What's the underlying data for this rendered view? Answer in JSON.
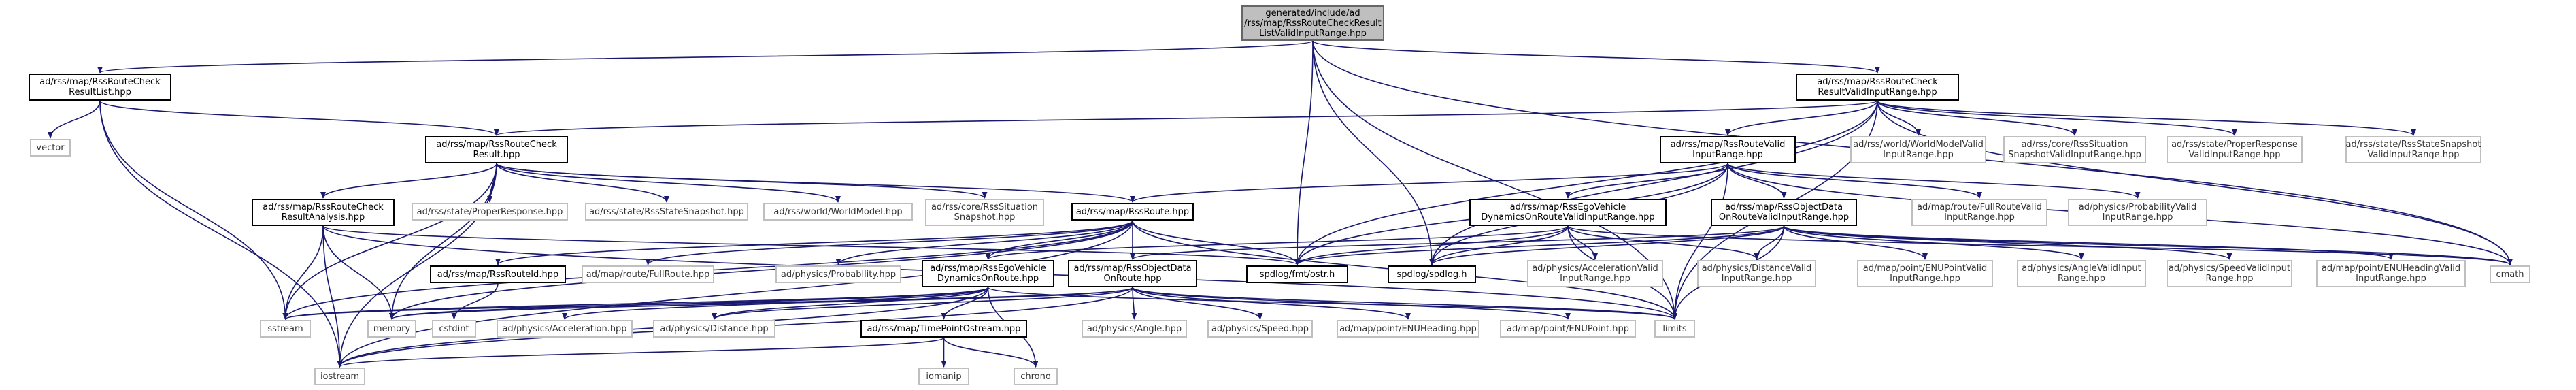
{
  "colors": {
    "edge": "#191970",
    "edge_alt": "#63b8ff",
    "root_fill": "#bfbfbf",
    "gray_border": "#bfbfbf"
  },
  "nodes": {
    "root": "generated/include/ad\n/rss/map/RssRouteCheckResult\nListValidInputRange.hpp",
    "n_resultlist": "ad/rss/map/RssRouteCheck\nResultList.hpp",
    "n_resultvalid": "ad/rss/map/RssRouteCheck\nResultValidInputRange.hpp",
    "n_vector": "vector",
    "n_checkresult": "ad/rss/map/RssRouteCheck\nResult.hpp",
    "n_routevalid": "ad/rss/map/RssRouteValid\nInputRange.hpp",
    "n_worldmodelvalid": "ad/rss/world/WorldModelValid\nInputRange.hpp",
    "n_situationvalid": "ad/rss/core/RssSituation\nSnapshotValidInputRange.hpp",
    "n_properresponsevalid": "ad/rss/state/ProperResponse\nValidInputRange.hpp",
    "n_statesnapshotvalid": "ad/rss/state/RssStateSnapshot\nValidInputRange.hpp",
    "n_checkanalysis": "ad/rss/map/RssRouteCheck\nResultAnalysis.hpp",
    "n_properresponse": "ad/rss/state/ProperResponse.hpp",
    "n_statesnapshot": "ad/rss/state/RssStateSnapshot.hpp",
    "n_worldmodel": "ad/rss/world/WorldModel.hpp",
    "n_situationsnap": "ad/rss/core/RssSituation\nSnapshot.hpp",
    "n_rssroute": "ad/rss/map/RssRoute.hpp",
    "n_egovalid": "ad/rss/map/RssEgoVehicle\nDynamicsOnRouteValidInputRange.hpp",
    "n_objectvalid": "ad/rss/map/RssObjectData\nOnRouteValidInputRange.hpp",
    "n_fullroutevalid": "ad/map/route/FullRouteValid\nInputRange.hpp",
    "n_probvalid": "ad/physics/ProbabilityValid\nInputRange.hpp",
    "n_routeid": "ad/rss/map/RssRouteId.hpp",
    "n_fullroute": "ad/map/route/FullRoute.hpp",
    "n_probability": "ad/physics/Probability.hpp",
    "n_egodyn": "ad/rss/map/RssEgoVehicle\nDynamicsOnRoute.hpp",
    "n_objdata": "ad/rss/map/RssObjectData\nOnRoute.hpp",
    "n_fmtostr": "spdlog/fmt/ostr.h",
    "n_spdlog": "spdlog/spdlog.h",
    "n_accelvalid": "ad/physics/AccelerationValid\nInputRange.hpp",
    "n_distvalid": "ad/physics/DistanceValid\nInputRange.hpp",
    "n_enupointvalid": "ad/map/point/ENUPointValid\nInputRange.hpp",
    "n_anglevalid": "ad/physics/AngleValidInput\nRange.hpp",
    "n_speedvalid": "ad/physics/SpeedValidInput\nRange.hpp",
    "n_enuheadingvalid": "ad/map/point/ENUHeadingValid\nInputRange.hpp",
    "n_cmath": "cmath",
    "n_sstream": "sstream",
    "n_memory": "memory",
    "n_cstdint": "cstdint",
    "n_acceleration": "ad/physics/Acceleration.hpp",
    "n_distance": "ad/physics/Distance.hpp",
    "n_timepoint": "ad/rss/map/TimePointOstream.hpp",
    "n_angle": "ad/physics/Angle.hpp",
    "n_speed": "ad/physics/Speed.hpp",
    "n_enuheading": "ad/map/point/ENUHeading.hpp",
    "n_enupoint": "ad/map/point/ENUPoint.hpp",
    "n_limits": "limits",
    "n_iostream": "iostream",
    "n_iomanip": "iomanip",
    "n_chrono": "chrono"
  },
  "edges": [
    [
      "root",
      "n_resultlist"
    ],
    [
      "root",
      "n_resultvalid"
    ],
    [
      "root",
      "n_fmtostr"
    ],
    [
      "root",
      "n_spdlog"
    ],
    [
      "root",
      "n_limits"
    ],
    [
      "root",
      "n_cmath"
    ],
    [
      "n_resultlist",
      "n_vector"
    ],
    [
      "n_resultlist",
      "n_checkresult"
    ],
    [
      "n_resultlist",
      "n_sstream"
    ],
    [
      "n_resultlist",
      "n_iostream"
    ],
    [
      "n_resultvalid",
      "n_checkresult"
    ],
    [
      "n_resultvalid",
      "n_routevalid"
    ],
    [
      "n_resultvalid",
      "n_worldmodelvalid"
    ],
    [
      "n_resultvalid",
      "n_situationvalid"
    ],
    [
      "n_resultvalid",
      "n_properresponsevalid"
    ],
    [
      "n_resultvalid",
      "n_statesnapshotvalid"
    ],
    [
      "n_resultvalid",
      "n_fmtostr"
    ],
    [
      "n_resultvalid",
      "n_spdlog"
    ],
    [
      "n_resultvalid",
      "n_limits"
    ],
    [
      "n_resultvalid",
      "n_cmath"
    ],
    [
      "n_checkresult",
      "n_checkanalysis"
    ],
    [
      "n_checkresult",
      "n_properresponse"
    ],
    [
      "n_checkresult",
      "n_statesnapshot"
    ],
    [
      "n_checkresult",
      "n_worldmodel"
    ],
    [
      "n_checkresult",
      "n_situationsnap"
    ],
    [
      "n_checkresult",
      "n_rssroute"
    ],
    [
      "n_checkresult",
      "n_sstream"
    ],
    [
      "n_checkresult",
      "n_memory"
    ],
    [
      "n_checkresult",
      "n_iostream"
    ],
    [
      "n_checkanalysis",
      "n_sstream"
    ],
    [
      "n_checkanalysis",
      "n_memory"
    ],
    [
      "n_checkanalysis",
      "n_iostream"
    ],
    [
      "n_checkanalysis",
      "n_limits"
    ],
    [
      "n_checkanalysis",
      "n_fmtostr"
    ],
    [
      "n_routevalid",
      "n_rssroute"
    ],
    [
      "n_routevalid",
      "n_egovalid"
    ],
    [
      "n_routevalid",
      "n_objectvalid"
    ],
    [
      "n_routevalid",
      "n_fullroutevalid"
    ],
    [
      "n_routevalid",
      "n_probvalid"
    ],
    [
      "n_routevalid",
      "n_fmtostr"
    ],
    [
      "n_routevalid",
      "n_spdlog"
    ],
    [
      "n_routevalid",
      "n_cmath"
    ],
    [
      "n_routevalid",
      "n_limits"
    ],
    [
      "n_rssroute",
      "n_routeid"
    ],
    [
      "n_rssroute",
      "n_fullroute"
    ],
    [
      "n_rssroute",
      "n_probability"
    ],
    [
      "n_rssroute",
      "n_egodyn"
    ],
    [
      "n_rssroute",
      "n_objdata"
    ],
    [
      "n_rssroute",
      "n_sstream"
    ],
    [
      "n_rssroute",
      "n_memory"
    ],
    [
      "n_rssroute",
      "n_iostream"
    ],
    [
      "n_rssroute",
      "n_limits"
    ],
    [
      "n_rssroute",
      "n_fmtostr"
    ],
    [
      "n_egovalid",
      "n_egodyn"
    ],
    [
      "n_egovalid",
      "n_accelvalid"
    ],
    [
      "n_egovalid",
      "n_distvalid"
    ],
    [
      "n_egovalid",
      "n_fmtostr"
    ],
    [
      "n_egovalid",
      "n_spdlog"
    ],
    [
      "n_egovalid",
      "n_limits"
    ],
    [
      "n_egovalid",
      "n_cmath"
    ],
    [
      "n_objectvalid",
      "n_objdata"
    ],
    [
      "n_objectvalid",
      "n_enupointvalid"
    ],
    [
      "n_objectvalid",
      "n_anglevalid"
    ],
    [
      "n_objectvalid",
      "n_speedvalid"
    ],
    [
      "n_objectvalid",
      "n_enuheadingvalid"
    ],
    [
      "n_objectvalid",
      "n_distvalid"
    ],
    [
      "n_objectvalid",
      "n_fmtostr"
    ],
    [
      "n_objectvalid",
      "n_spdlog"
    ],
    [
      "n_objectvalid",
      "n_limits"
    ],
    [
      "n_objectvalid",
      "n_cmath"
    ],
    [
      "n_routeid",
      "n_cstdint"
    ],
    [
      "n_egodyn",
      "n_acceleration"
    ],
    [
      "n_egodyn",
      "n_distance"
    ],
    [
      "n_egodyn",
      "n_timepoint"
    ],
    [
      "n_egodyn",
      "n_sstream"
    ],
    [
      "n_egodyn",
      "n_memory"
    ],
    [
      "n_egodyn",
      "n_iostream"
    ],
    [
      "n_egodyn",
      "n_limits"
    ],
    [
      "n_egodyn",
      "n_chrono"
    ],
    [
      "n_objdata",
      "n_angle"
    ],
    [
      "n_objdata",
      "n_speed"
    ],
    [
      "n_objdata",
      "n_enuheading"
    ],
    [
      "n_objdata",
      "n_enupoint"
    ],
    [
      "n_objdata",
      "n_distance"
    ],
    [
      "n_objdata",
      "n_sstream"
    ],
    [
      "n_objdata",
      "n_memory"
    ],
    [
      "n_objdata",
      "n_iostream"
    ],
    [
      "n_objdata",
      "n_limits"
    ],
    [
      "n_timepoint",
      "n_iomanip"
    ],
    [
      "n_timepoint",
      "n_chrono"
    ],
    [
      "n_timepoint",
      "n_iostream"
    ]
  ]
}
